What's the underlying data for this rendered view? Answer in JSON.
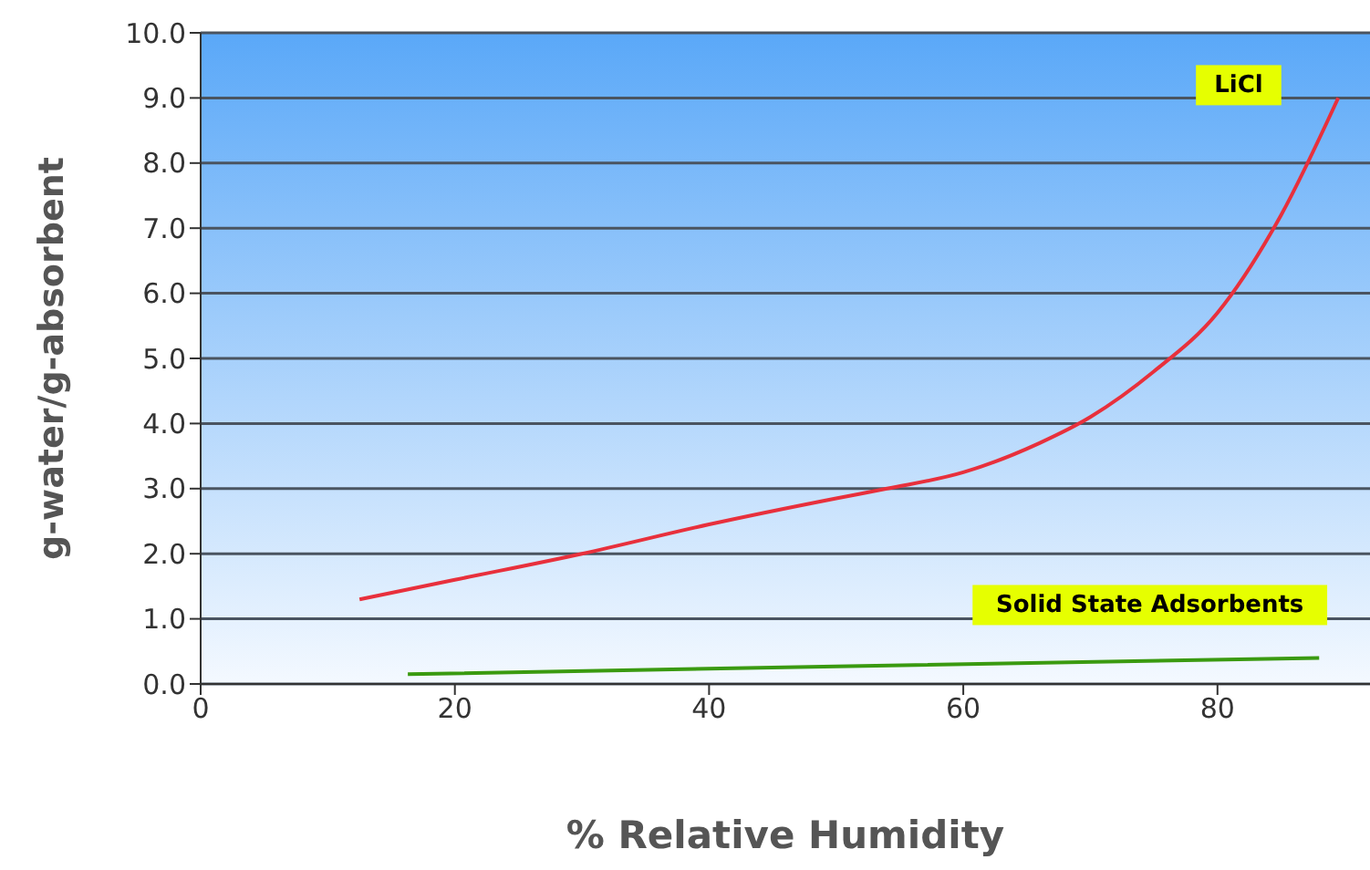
{
  "chart_data": {
    "type": "line",
    "xlabel": "% Relative Humidity",
    "ylabel": "g-water/g-absorbent",
    "xlim": [
      0,
      92
    ],
    "xticks": [
      0,
      20,
      40,
      60,
      80
    ],
    "ylim": [
      0,
      10
    ],
    "yticks": [
      {
        "value": 0,
        "label": "0.0"
      },
      {
        "value": 1,
        "label": "1.0"
      },
      {
        "value": 2,
        "label": "2.0"
      },
      {
        "value": 3,
        "label": "3.0"
      },
      {
        "value": 4,
        "label": "4.0"
      },
      {
        "value": 5,
        "label": "5.0"
      },
      {
        "value": 6,
        "label": "6.0"
      },
      {
        "value": 7,
        "label": "7.0"
      },
      {
        "value": 8,
        "label": "8.0"
      },
      {
        "value": 9,
        "label": "9.0"
      },
      {
        "value": 10,
        "label": "10.0"
      }
    ],
    "grid": "y",
    "series": [
      {
        "name": "LiCl",
        "color": "#e8303c",
        "x": [
          12.5,
          20,
          30,
          40,
          50,
          54,
          60,
          66,
          70,
          75,
          80,
          85,
          89.5
        ],
        "values": [
          1.3,
          1.6,
          2.0,
          2.45,
          2.85,
          3.0,
          3.25,
          3.7,
          4.1,
          4.8,
          5.7,
          7.2,
          9.0
        ]
      },
      {
        "name": "Solid State Adsorbents",
        "color": "#3a9a10",
        "x": [
          16.3,
          50,
          88
        ],
        "values": [
          0.15,
          0.27,
          0.4
        ]
      }
    ]
  }
}
